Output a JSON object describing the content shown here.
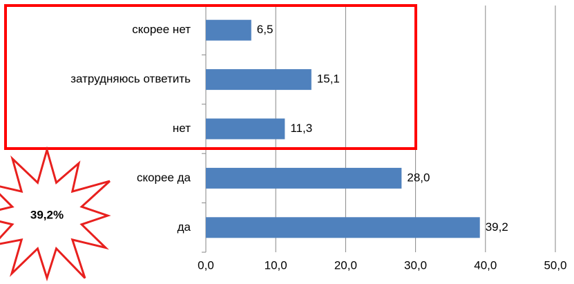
{
  "chart_data": {
    "type": "bar",
    "orientation": "horizontal",
    "categories": [
      "скорее нет",
      "затрудняюсь ответить",
      "нет",
      "скорее да",
      "да"
    ],
    "values": [
      6.5,
      15.1,
      11.3,
      28.0,
      39.2
    ],
    "value_labels": [
      "6,5",
      "15,1",
      "11,3",
      "28,0",
      "39,2"
    ],
    "color": "#4f81bd",
    "xlim": [
      0,
      50
    ],
    "xticks": [
      {
        "value": 0,
        "label": "0,0"
      },
      {
        "value": 10,
        "label": "10,0"
      },
      {
        "value": 20,
        "label": "20,0"
      },
      {
        "value": 30,
        "label": "30,0"
      },
      {
        "value": 40,
        "label": "40,0"
      },
      {
        "value": 50,
        "label": "50,0"
      }
    ],
    "grid": true,
    "annotation": "39,2%"
  }
}
